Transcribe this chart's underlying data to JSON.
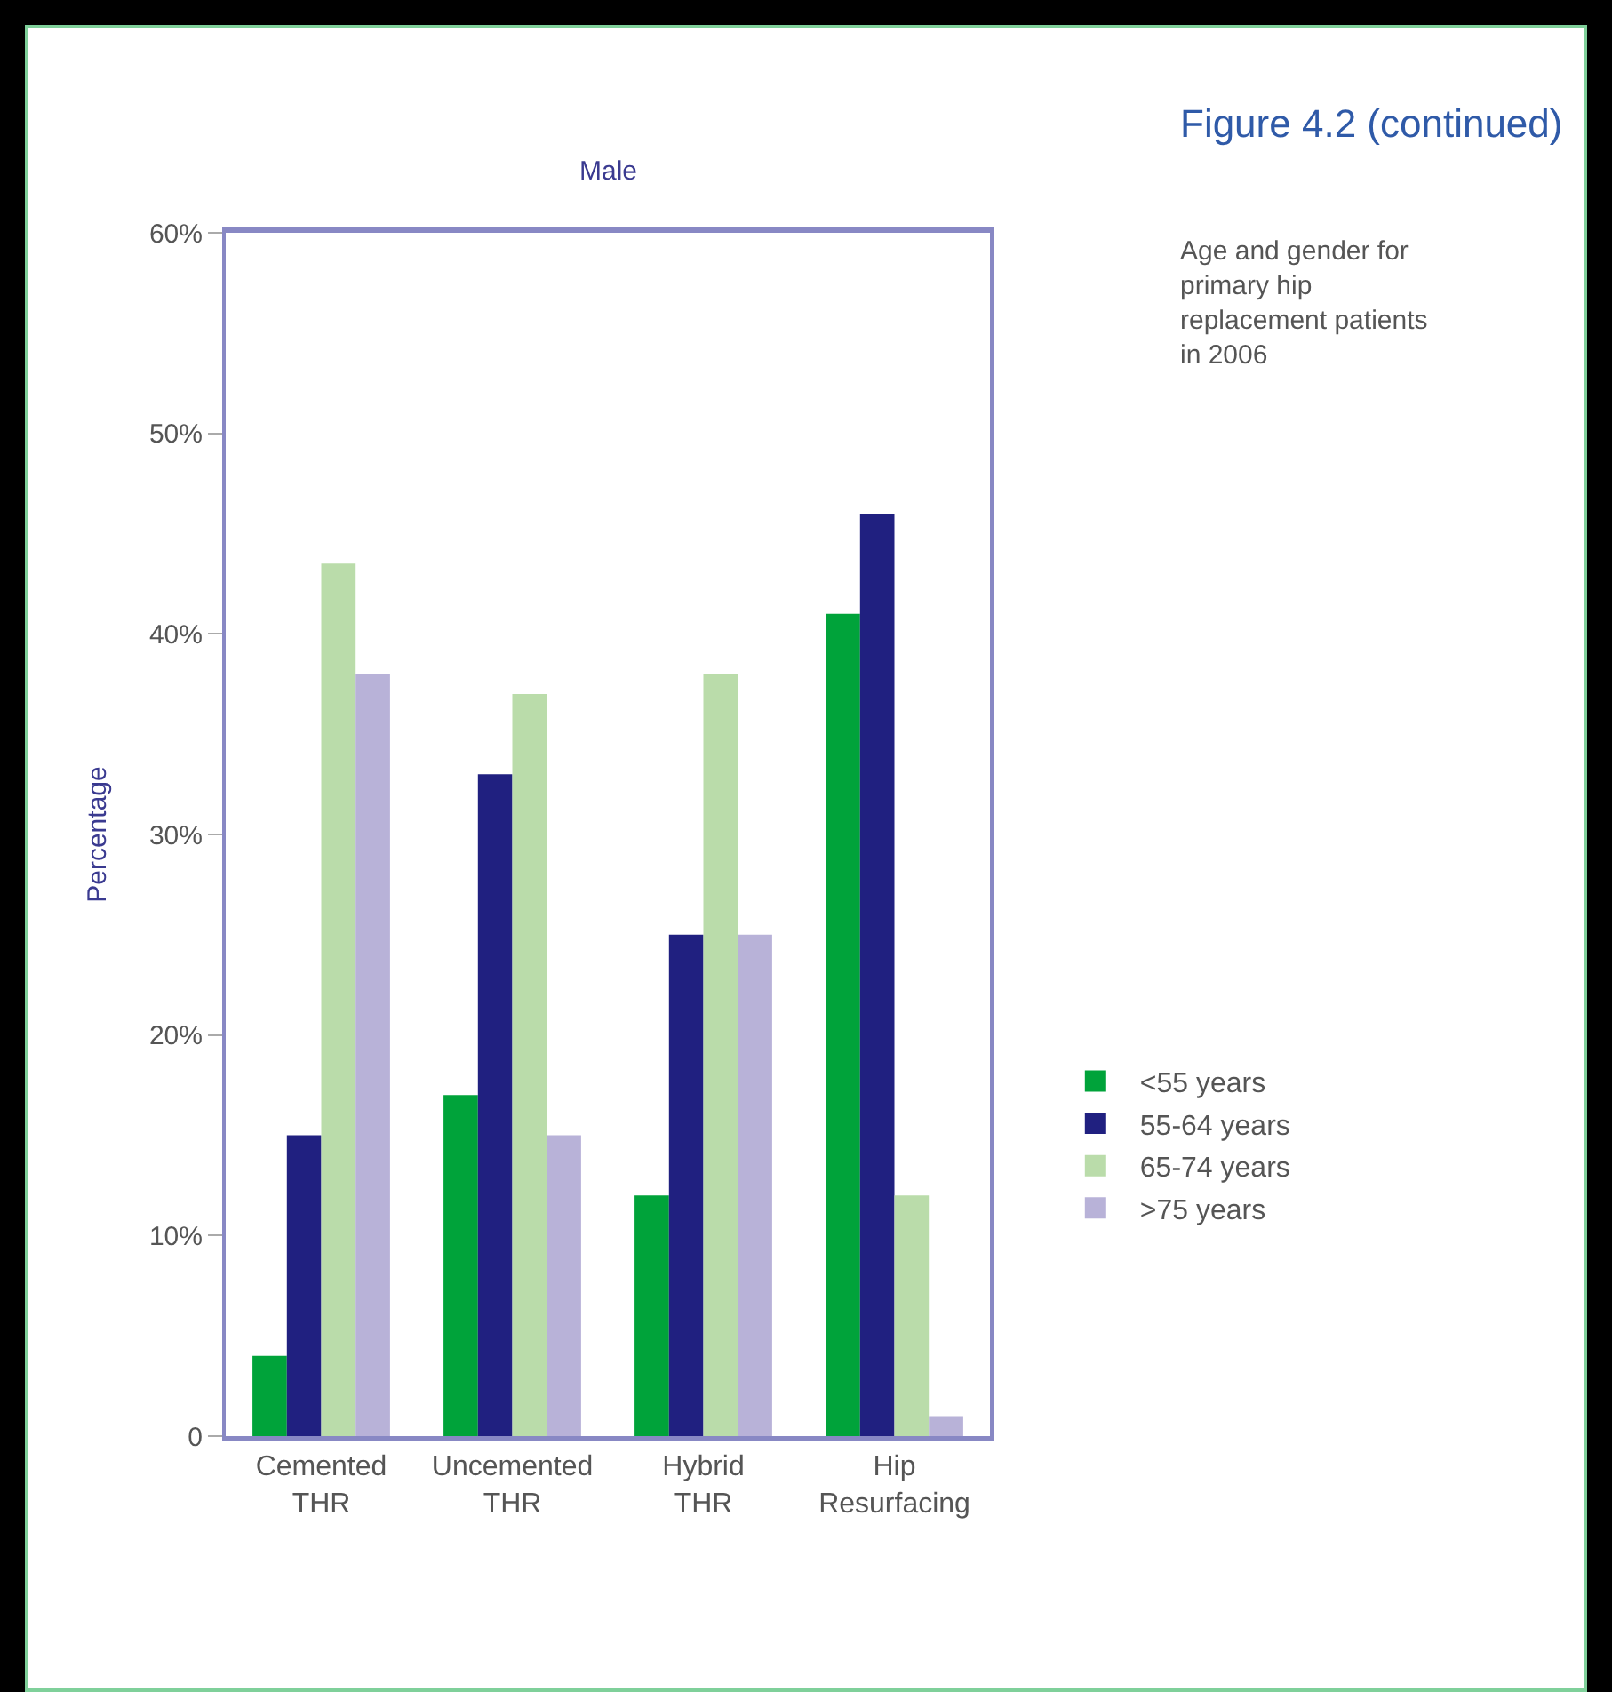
{
  "chart_data": {
    "type": "bar",
    "title": "Figure 4.2 (continued)",
    "subtitle": "Age and gender for primary hip replacement patients in 2006",
    "annotations": [
      "Male"
    ],
    "ylabel": "Percentage",
    "categories": [
      "Cemented THR",
      "Uncemented THR",
      "Hybrid THR",
      "Hip Resurfacing"
    ],
    "series": [
      {
        "name": "<55 years",
        "color": "#00a33a",
        "values": [
          4,
          17,
          12,
          41
        ]
      },
      {
        "name": "55-64 years",
        "color": "#202080",
        "values": [
          15,
          33,
          25,
          46
        ]
      },
      {
        "name": "65-74 years",
        "color": "#badcaa",
        "values": [
          43.5,
          37,
          38,
          12
        ]
      },
      {
        "name": ">75 years",
        "color": "#b8b2d8",
        "values": [
          38,
          15,
          25,
          1
        ]
      }
    ],
    "ylim": [
      0,
      60
    ],
    "yticks": [
      0,
      {
        "value": 10,
        "label": "10%"
      },
      {
        "value": 20,
        "label": "20%"
      },
      {
        "value": 30,
        "label": "30%"
      },
      {
        "value": 40,
        "label": "40%"
      },
      {
        "value": 50,
        "label": "50%"
      },
      {
        "value": 60,
        "label": "60%"
      }
    ],
    "grid": false,
    "legend": "right"
  }
}
